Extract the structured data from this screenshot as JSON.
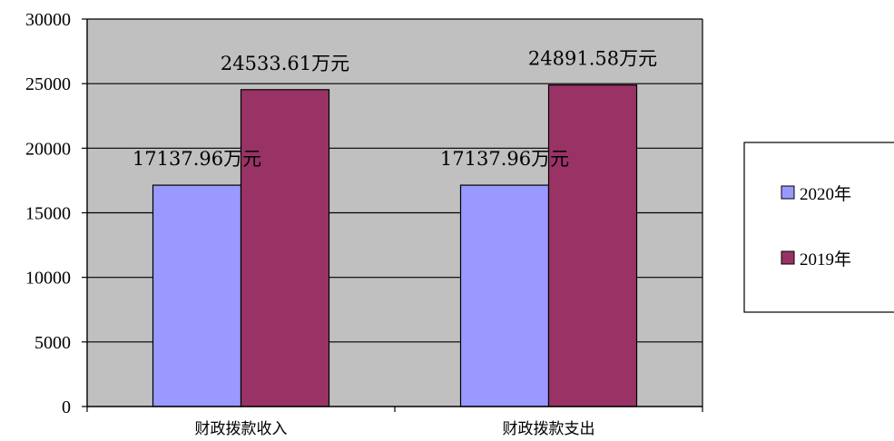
{
  "chart_data": {
    "type": "bar",
    "title": "",
    "xlabel": "",
    "ylabel": "",
    "categories": [
      "财政拨款收入",
      "财政拨款支出"
    ],
    "ylim": [
      0,
      30000
    ],
    "yticks": [
      "0",
      "5000",
      "10000",
      "15000",
      "20000",
      "25000",
      "30000"
    ],
    "grid": true,
    "legend_position": "right",
    "series": [
      {
        "name": "2020年",
        "values": [
          17137.96,
          17137.96
        ],
        "color": "#9999ff",
        "labels": [
          "17137.96万元",
          "17137.96万元"
        ]
      },
      {
        "name": "2019年",
        "values": [
          24533.61,
          24891.58
        ],
        "color": "#993366",
        "labels": [
          "24533.61万元",
          "24891.58万元"
        ]
      }
    ],
    "plot_background": "#c0c0c0"
  }
}
